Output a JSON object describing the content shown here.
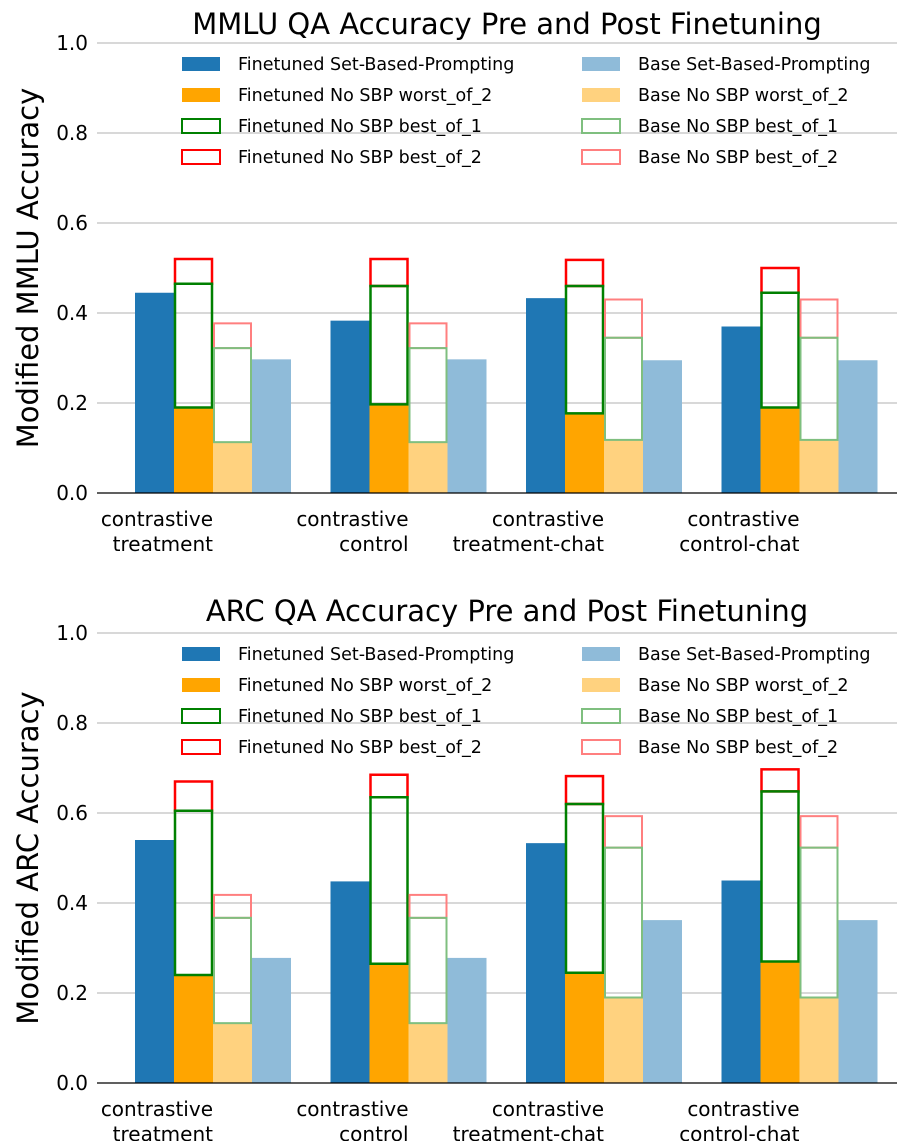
{
  "chart_data": [
    {
      "type": "bar",
      "title": "MMLU QA Accuracy Pre and Post Finetuning",
      "xlabel": "",
      "ylabel": "Modified MMLU Accuracy",
      "ylim": [
        0,
        1.0
      ],
      "yticks": [
        "0.0",
        "0.2",
        "0.4",
        "0.6",
        "0.8",
        "1.0"
      ],
      "grid": "horizontal",
      "legend_position": "top",
      "categories": [
        [
          "contrastive",
          "treatment"
        ],
        [
          "contrastive",
          "control"
        ],
        [
          "contrastive",
          "treatment-chat"
        ],
        [
          "contrastive",
          "control-chat"
        ]
      ],
      "legend": [
        "Finetuned Set-Based-Prompting",
        "Finetuned No SBP worst_of_2",
        "Finetuned No SBP best_of_1",
        "Finetuned No SBP best_of_2",
        "Base Set-Based-Prompting",
        "Base No SBP worst_of_2",
        "Base No SBP best_of_1",
        "Base No SBP best_of_2"
      ],
      "series": [
        {
          "name": "Finetuned Set-Based-Prompting",
          "values": [
            0.445,
            0.383,
            0.433,
            0.37
          ]
        },
        {
          "name": "Finetuned No SBP worst_of_2",
          "values": [
            0.19,
            0.197,
            0.177,
            0.19
          ]
        },
        {
          "name": "Finetuned No SBP best_of_1",
          "values": [
            0.465,
            0.46,
            0.46,
            0.445
          ]
        },
        {
          "name": "Finetuned No SBP best_of_2",
          "values": [
            0.52,
            0.52,
            0.518,
            0.5
          ]
        },
        {
          "name": "Base Set-Based-Prompting",
          "values": [
            0.297,
            0.297,
            0.295,
            0.295
          ]
        },
        {
          "name": "Base No SBP worst_of_2",
          "values": [
            0.113,
            0.113,
            0.118,
            0.118
          ]
        },
        {
          "name": "Base No SBP best_of_1",
          "values": [
            0.322,
            0.322,
            0.345,
            0.345
          ]
        },
        {
          "name": "Base No SBP best_of_2",
          "values": [
            0.377,
            0.377,
            0.43,
            0.43
          ]
        }
      ]
    },
    {
      "type": "bar",
      "title": "ARC QA Accuracy Pre and Post Finetuning",
      "xlabel": "",
      "ylabel": "Modified ARC Accuracy",
      "ylim": [
        0,
        1.0
      ],
      "yticks": [
        "0.0",
        "0.2",
        "0.4",
        "0.6",
        "0.8",
        "1.0"
      ],
      "grid": "horizontal",
      "legend_position": "top",
      "categories": [
        [
          "contrastive",
          "treatment"
        ],
        [
          "contrastive",
          "control"
        ],
        [
          "contrastive",
          "treatment-chat"
        ],
        [
          "contrastive",
          "control-chat"
        ]
      ],
      "legend": [
        "Finetuned Set-Based-Prompting",
        "Finetuned No SBP worst_of_2",
        "Finetuned No SBP best_of_1",
        "Finetuned No SBP best_of_2",
        "Base Set-Based-Prompting",
        "Base No SBP worst_of_2",
        "Base No SBP best_of_1",
        "Base No SBP best_of_2"
      ],
      "series": [
        {
          "name": "Finetuned Set-Based-Prompting",
          "values": [
            0.54,
            0.448,
            0.533,
            0.45
          ]
        },
        {
          "name": "Finetuned No SBP worst_of_2",
          "values": [
            0.24,
            0.265,
            0.245,
            0.27
          ]
        },
        {
          "name": "Finetuned No SBP best_of_1",
          "values": [
            0.605,
            0.635,
            0.62,
            0.648
          ]
        },
        {
          "name": "Finetuned No SBP best_of_2",
          "values": [
            0.67,
            0.685,
            0.682,
            0.697
          ]
        },
        {
          "name": "Base Set-Based-Prompting",
          "values": [
            0.278,
            0.278,
            0.362,
            0.362
          ]
        },
        {
          "name": "Base No SBP worst_of_2",
          "values": [
            0.133,
            0.133,
            0.19,
            0.19
          ]
        },
        {
          "name": "Base No SBP best_of_1",
          "values": [
            0.367,
            0.367,
            0.523,
            0.523
          ]
        },
        {
          "name": "Base No SBP best_of_2",
          "values": [
            0.418,
            0.418,
            0.593,
            0.593
          ]
        }
      ]
    }
  ],
  "colors": {
    "finetuned_sbp": "#1f77b4",
    "finetuned_worst": "#ffa500",
    "finetuned_best1": "#008000",
    "finetuned_best2": "#ff0000",
    "base_sbp": "#8fbbd9",
    "base_worst": "#ffd27f",
    "base_best1": "#7fbf7f",
    "base_best2": "#ff7f7f",
    "grid": "#b0b0b0"
  }
}
